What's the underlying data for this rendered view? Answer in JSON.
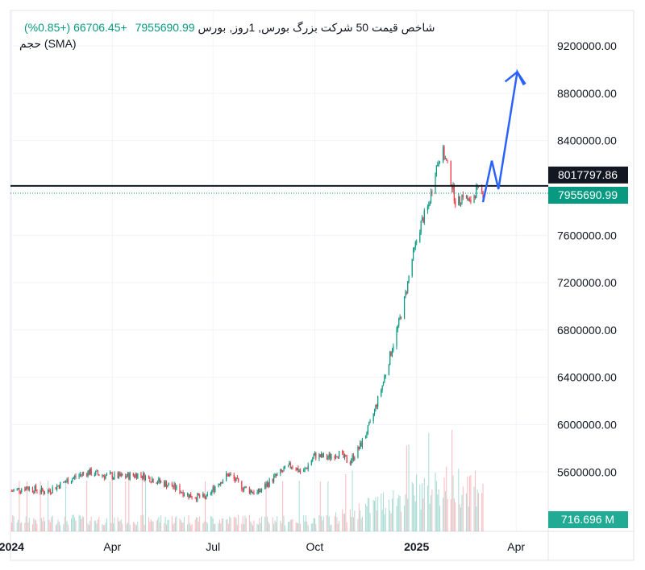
{
  "legend": {
    "title": "شاخص قیمت 50 شرکت بزرگ بورس, 1روز, بورس",
    "last_value": "7955690.99",
    "change": "+66706.45 (+0.85%)",
    "volume_label": "حجم (SMA)"
  },
  "colors": {
    "up": "#089981",
    "down": "#f23645",
    "grid": "#f0f3fa",
    "axis_text": "#131722",
    "hline": "#131722",
    "arrow": "#2962ff",
    "last_price_badge": "#089981",
    "hline_badge": "#131722",
    "volume_badge": "#22ab94"
  },
  "badges": {
    "hline_value": "8017797.86",
    "last_price": "7955690.99",
    "volume": "716.696 M"
  },
  "chart_data": {
    "type": "candlestick",
    "y_axis": {
      "range": [
        5350000,
        9500000
      ],
      "ticks": [
        "9200000.00",
        "8800000.00",
        "8400000.00",
        "7600000.00",
        "7200000.00",
        "6800000.00",
        "6400000.00",
        "6000000.00",
        "5600000.00"
      ],
      "tick_values": [
        9200000,
        8800000,
        8400000,
        7600000,
        7200000,
        6800000,
        6400000,
        6000000,
        5600000
      ]
    },
    "x_axis": {
      "labels": [
        "2024",
        "Apr",
        "Jul",
        "Oct",
        "2025",
        "Apr"
      ],
      "label_positions": [
        "2024-01-01",
        "2024-04-01",
        "2024-07-01",
        "2024-10-01",
        "2025-01-01",
        "2025-04-01"
      ],
      "bold": [
        true,
        false,
        false,
        false,
        true,
        false
      ]
    },
    "horizontal_line": 8017797.86,
    "last_price": 7955690.99,
    "price_path": [
      [
        "2024-01-01",
        5440000
      ],
      [
        "2024-01-15",
        5470000
      ],
      [
        "2024-02-01",
        5430000
      ],
      [
        "2024-02-15",
        5500000
      ],
      [
        "2024-03-01",
        5570000
      ],
      [
        "2024-03-10",
        5600000
      ],
      [
        "2024-03-25",
        5570000
      ],
      [
        "2024-04-10",
        5560000
      ],
      [
        "2024-04-25",
        5580000
      ],
      [
        "2024-05-10",
        5530000
      ],
      [
        "2024-05-25",
        5480000
      ],
      [
        "2024-06-10",
        5400000
      ],
      [
        "2024-06-25",
        5380000
      ],
      [
        "2024-07-05",
        5500000
      ],
      [
        "2024-07-15",
        5580000
      ],
      [
        "2024-07-28",
        5470000
      ],
      [
        "2024-08-10",
        5420000
      ],
      [
        "2024-08-25",
        5550000
      ],
      [
        "2024-09-10",
        5660000
      ],
      [
        "2024-09-20",
        5590000
      ],
      [
        "2024-10-01",
        5740000
      ],
      [
        "2024-10-12",
        5720000
      ],
      [
        "2024-10-22",
        5760000
      ],
      [
        "2024-11-01",
        5680000
      ],
      [
        "2024-11-10",
        5800000
      ],
      [
        "2024-11-20",
        6000000
      ],
      [
        "2024-12-01",
        6330000
      ],
      [
        "2024-12-10",
        6650000
      ],
      [
        "2024-12-20",
        7000000
      ],
      [
        "2024-12-28",
        7400000
      ],
      [
        "2025-01-05",
        7700000
      ],
      [
        "2025-01-12",
        7850000
      ],
      [
        "2025-01-18",
        8150000
      ],
      [
        "2025-01-24",
        8330000
      ],
      [
        "2025-01-30",
        8150000
      ],
      [
        "2025-02-06",
        7850000
      ],
      [
        "2025-02-12",
        7950000
      ],
      [
        "2025-02-18",
        7870000
      ],
      [
        "2025-02-24",
        7980000
      ],
      [
        "2025-03-02",
        7955690.99
      ]
    ],
    "projection_arrow": [
      [
        "2025-03-02",
        7880000
      ],
      [
        "2025-03-10",
        8230000
      ],
      [
        "2025-03-16",
        7990000
      ],
      [
        "2025-04-02",
        8980000
      ],
      [
        "2025-04-08",
        8870000
      ]
    ]
  }
}
